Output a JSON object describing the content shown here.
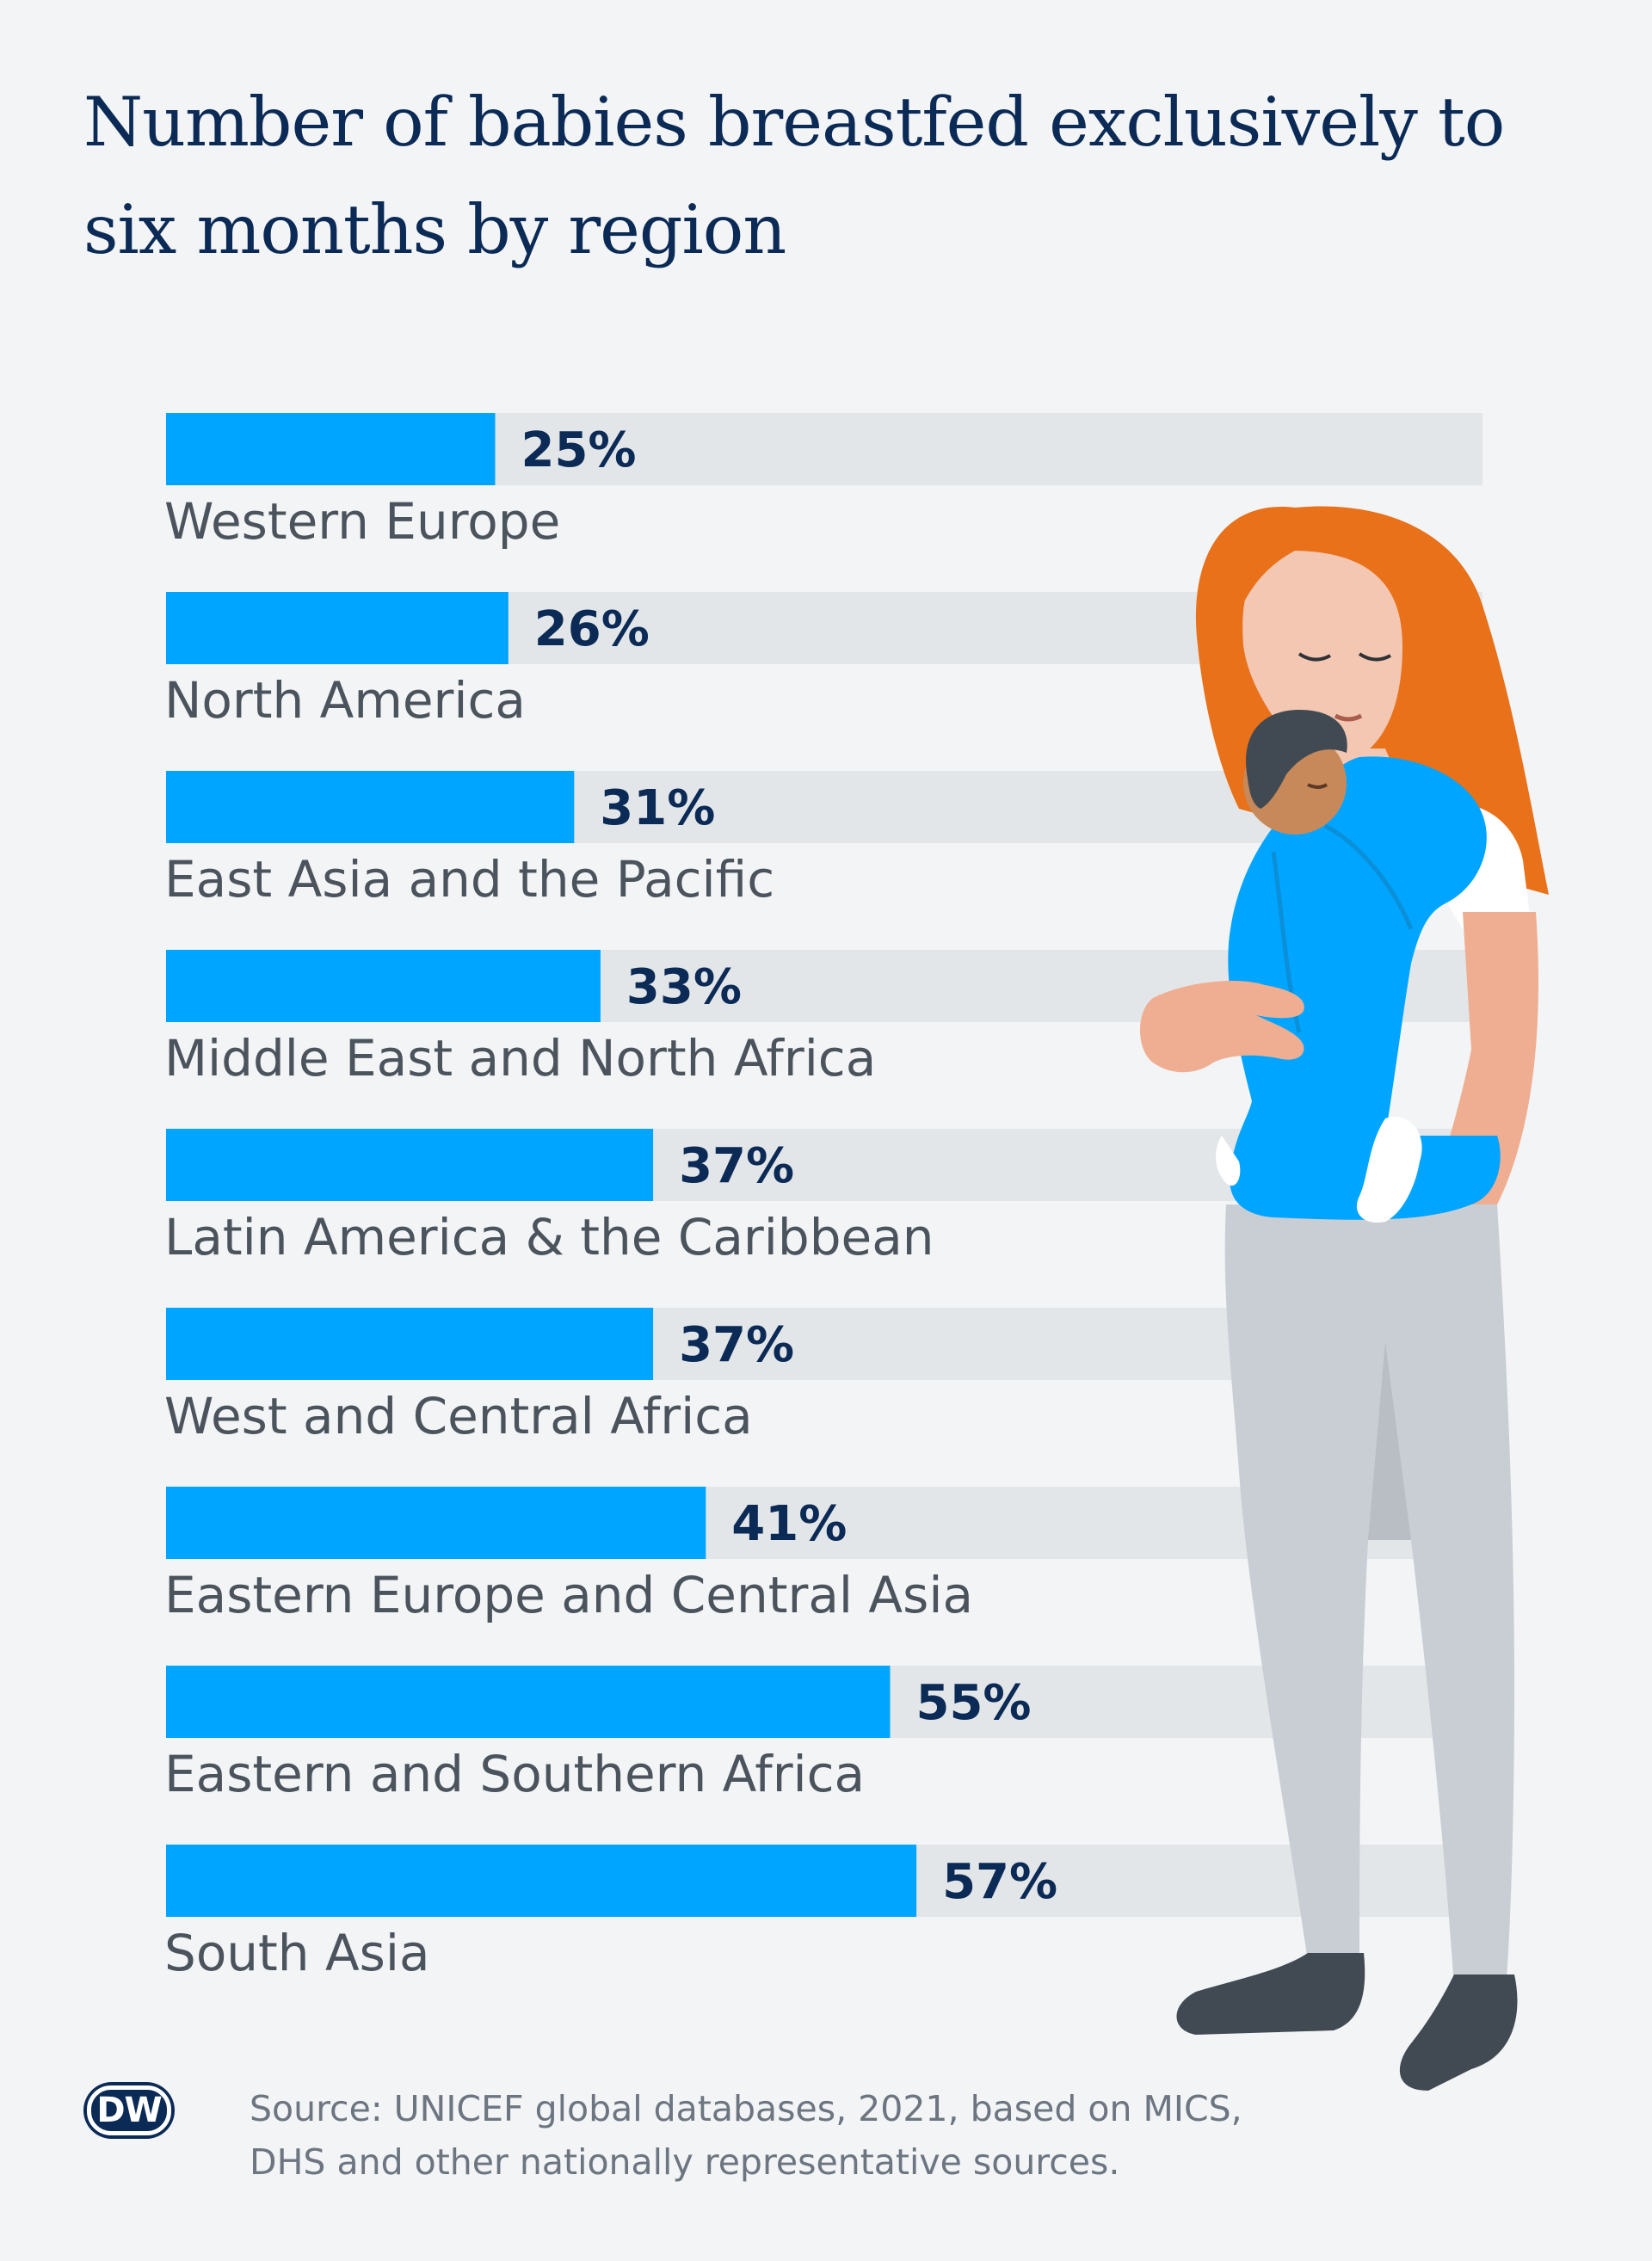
{
  "title": "Number of babies breastfed exclusively to six months by region",
  "chart_data": {
    "type": "bar",
    "orientation": "horizontal",
    "title": "Number of babies breastfed exclusively to six months by region",
    "categories": [
      "Western Europe",
      "North America",
      "East Asia and the Pacific",
      "Middle East and North Africa",
      "Latin America & the Caribbean",
      "West and Central Africa",
      "Eastern Europe and Central Asia",
      "Eastern and Southern Africa",
      "South Asia"
    ],
    "values": [
      25,
      26,
      31,
      33,
      37,
      37,
      41,
      55,
      57
    ],
    "value_labels": [
      "25%",
      "26%",
      "31%",
      "33%",
      "37%",
      "37%",
      "41%",
      "55%",
      "57%"
    ],
    "xlim": [
      0,
      100
    ],
    "unit": "%",
    "grid": false,
    "colors": {
      "bar": "#00a5ff",
      "track": "#e3e6e9",
      "value_text": "#0b2a55",
      "label_text": "#4b535c"
    }
  },
  "logo": {
    "text": "DW"
  },
  "source": {
    "line1": "Source: UNICEF global databases, 2021, based on MICS,",
    "line2": "DHS and other nationally representative sources."
  },
  "colors": {
    "background": "#f2f4f6",
    "title": "#0b2a55",
    "hair": "#e8711a",
    "carrier": "#00a5ff",
    "pants": "#c9ced4"
  }
}
